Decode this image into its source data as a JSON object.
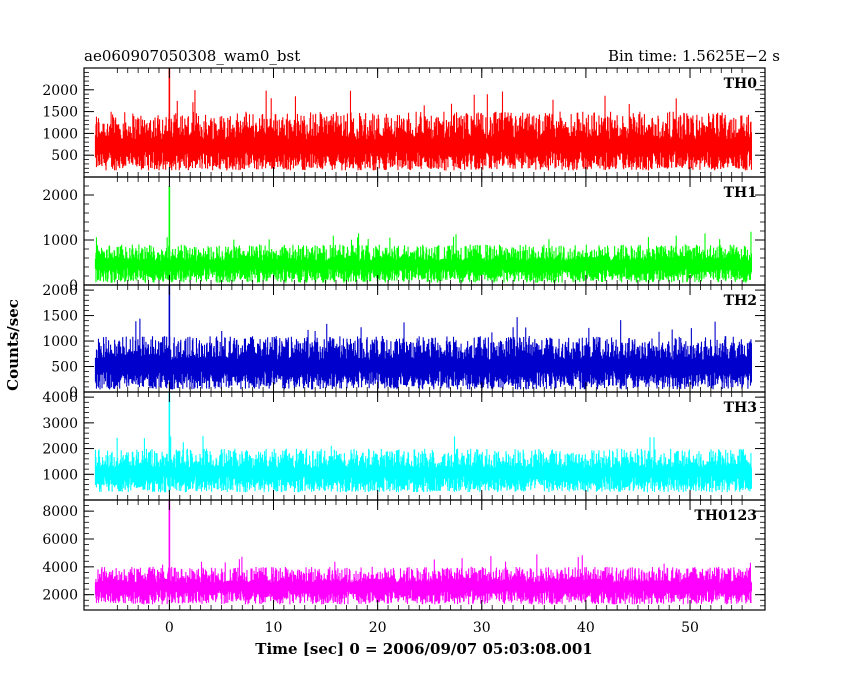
{
  "header": {
    "left": "ae060907050308_wam0_bst",
    "right": "Bin time: 1.5625E−2 s"
  },
  "chart_data": {
    "type": "line",
    "title": "ae060907050308_wam0_bst",
    "subtitle": "Bin time: 1.5625E−2 s",
    "xlabel": "Time [sec] 0 = 2006/09/07 05:03:08.001",
    "ylabel": "Counts/sec",
    "xlim": [
      -8.2,
      57.2
    ],
    "data_xrange": [
      -7.1,
      55.9
    ],
    "xticks": [
      0,
      10,
      20,
      30,
      40,
      50
    ],
    "xtick_labels": [
      "0",
      "10",
      "20",
      "30",
      "40",
      "50"
    ],
    "grid": false,
    "legend": "none",
    "panels": [
      {
        "name": "TH0",
        "color": "#ff0000",
        "ylim": [
          0,
          2500
        ],
        "yticks": [
          500,
          1000,
          1500,
          2000
        ],
        "ytick_labels": [
          "500",
          "1000",
          "1500",
          "2000"
        ],
        "baseline_mean": 650,
        "typical_range": [
          150,
          1500
        ],
        "peak": {
          "x": 0.0,
          "y": 2500
        }
      },
      {
        "name": "TH1",
        "color": "#00ff00",
        "ylim": [
          0,
          2400
        ],
        "yticks": [
          0,
          1000,
          2000
        ],
        "ytick_labels": [
          "0",
          "1000",
          "2000"
        ],
        "baseline_mean": 420,
        "typical_range": [
          50,
          900
        ],
        "peak": {
          "x": 0.0,
          "y": 2200
        }
      },
      {
        "name": "TH2",
        "color": "#0000cc",
        "ylim": [
          0,
          2100
        ],
        "yticks": [
          0,
          500,
          1000,
          1500,
          2000
        ],
        "ytick_labels": [
          "0",
          "500",
          "1000",
          "1500",
          "2000"
        ],
        "baseline_mean": 480,
        "typical_range": [
          50,
          1100
        ],
        "peak": {
          "x": 0.0,
          "y": 2100
        }
      },
      {
        "name": "TH3",
        "color": "#00ffff",
        "ylim": [
          0,
          4200
        ],
        "yticks": [
          1000,
          2000,
          3000,
          4000
        ],
        "ytick_labels": [
          "1000",
          "2000",
          "3000",
          "4000"
        ],
        "baseline_mean": 1000,
        "typical_range": [
          300,
          2000
        ],
        "peak": {
          "x": 0.0,
          "y": 4200
        }
      },
      {
        "name": "TH0123",
        "color": "#ff00ff",
        "ylim": [
          900,
          8800
        ],
        "yticks": [
          2000,
          4000,
          6000,
          8000
        ],
        "ytick_labels": [
          "2000",
          "4000",
          "6000",
          "8000"
        ],
        "baseline_mean": 2500,
        "typical_range": [
          1300,
          4000
        ],
        "peak": {
          "x": 0.0,
          "y": 8800
        }
      }
    ]
  }
}
